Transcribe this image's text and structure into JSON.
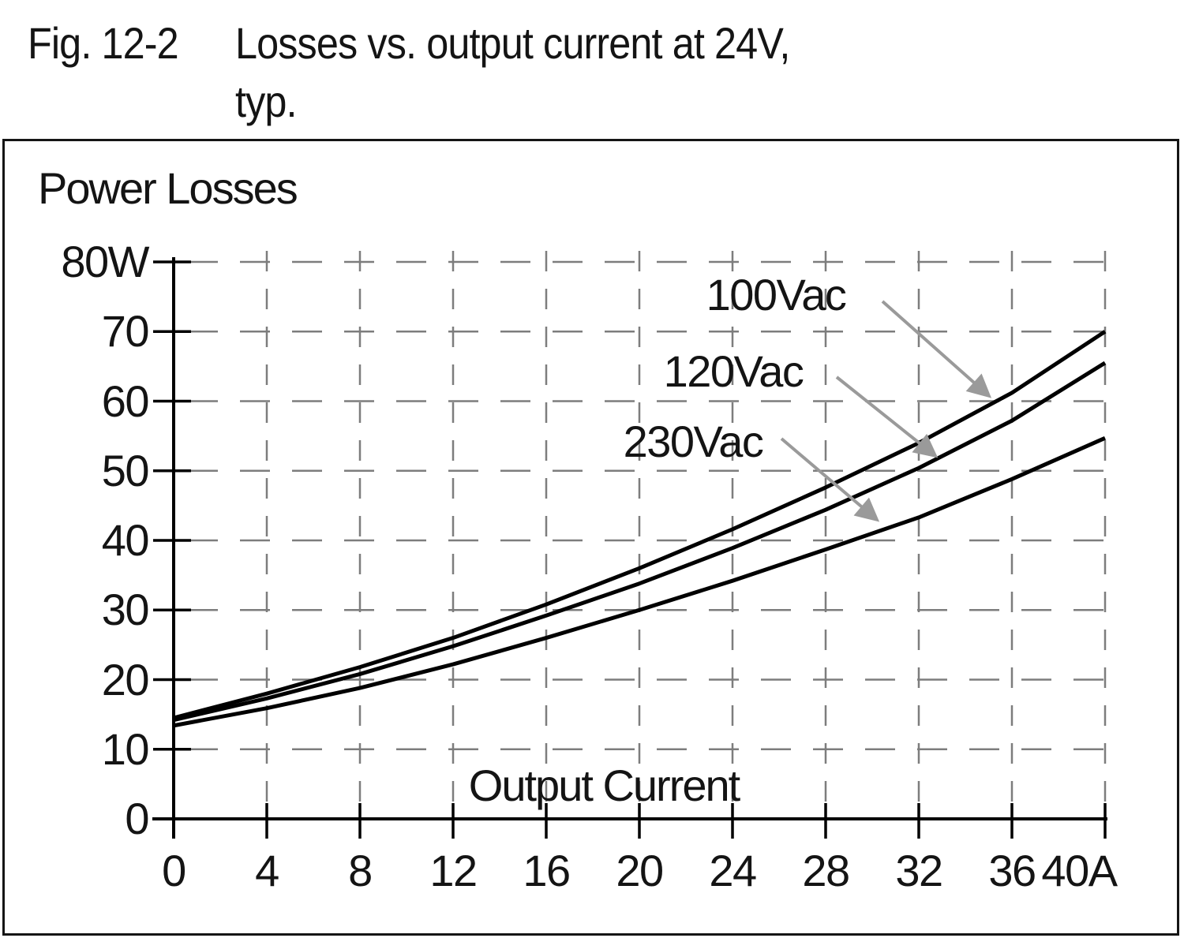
{
  "figure": {
    "label": "Fig. 12-2",
    "title_line1": "Losses vs. output current at 24V,",
    "title_line2": "typ."
  },
  "chart_data": {
    "type": "line",
    "title": "Losses vs. output current at 24V, typ.",
    "ylabel": "Power Losses",
    "xlabel": "Output Current",
    "y_unit": "W",
    "x_unit": "A",
    "xlim": [
      0,
      40
    ],
    "ylim": [
      0,
      80
    ],
    "grid": "dashed",
    "legend_position": "inline-labels-with-arrows",
    "x": [
      0,
      4,
      8,
      12,
      16,
      20,
      24,
      28,
      32,
      36,
      40
    ],
    "x_ticks": [
      0,
      4,
      8,
      12,
      16,
      20,
      24,
      28,
      32,
      36,
      40
    ],
    "x_tick_labels": [
      "0",
      "4",
      "8",
      "12",
      "16",
      "20",
      "24",
      "28",
      "32",
      "36",
      "40A"
    ],
    "y_ticks": [
      0,
      10,
      20,
      30,
      40,
      50,
      60,
      70,
      80
    ],
    "y_tick_labels": [
      "0",
      "10",
      "20",
      "30",
      "40",
      "50",
      "60",
      "70",
      "80W"
    ],
    "series": [
      {
        "name": "100Vac",
        "values": [
          14.5,
          18.0,
          21.8,
          26.0,
          30.8,
          36.0,
          41.6,
          47.6,
          54.0,
          61.2,
          70.0
        ]
      },
      {
        "name": "120Vac",
        "values": [
          14.2,
          17.3,
          20.8,
          24.8,
          29.2,
          33.8,
          38.9,
          44.4,
          50.4,
          57.2,
          65.5
        ]
      },
      {
        "name": "230Vac",
        "values": [
          13.4,
          15.9,
          18.8,
          22.2,
          26.0,
          30.0,
          34.2,
          38.7,
          43.3,
          48.8,
          54.7
        ]
      }
    ],
    "colors": {
      "curve": "#000000",
      "grid": "#7d7d7d",
      "arrow": "#9a9a9a",
      "axis": "#000000"
    },
    "annotations": {
      "labels_have_arrows_to_curves": true,
      "arrow_color": "#9a9a9a"
    }
  }
}
